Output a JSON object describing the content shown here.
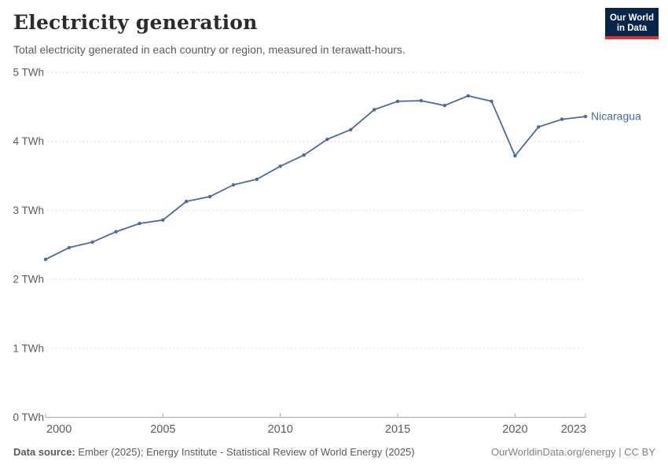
{
  "header": {
    "title": "Electricity generation",
    "subtitle": "Total electricity generated in each country or region, measured in terawatt-hours.",
    "logo": {
      "line1": "Our World",
      "line2": "in Data",
      "bg_color": "#08254a",
      "accent_color": "#d7352b"
    }
  },
  "chart_data": {
    "type": "line",
    "title": "Electricity generation",
    "unit": "TWh",
    "x": [
      2000,
      2001,
      2002,
      2003,
      2004,
      2005,
      2006,
      2007,
      2008,
      2009,
      2010,
      2011,
      2012,
      2013,
      2014,
      2015,
      2016,
      2017,
      2018,
      2019,
      2020,
      2021,
      2022,
      2023
    ],
    "series": [
      {
        "name": "Nicaragua",
        "color": "#4c6a9c",
        "values": [
          2.29,
          2.46,
          2.54,
          2.69,
          2.81,
          2.86,
          3.13,
          3.2,
          3.37,
          3.45,
          3.64,
          3.8,
          4.03,
          4.17,
          4.46,
          4.58,
          4.59,
          4.52,
          4.66,
          4.58,
          3.79,
          4.21,
          4.32,
          4.36
        ]
      }
    ],
    "ylim": [
      0,
      5
    ],
    "yticks": [
      0,
      1,
      2,
      3,
      4,
      5
    ],
    "ytick_suffix": " TWh",
    "xticks": [
      2000,
      2005,
      2010,
      2015,
      2020,
      2023
    ],
    "grid": "dashed-horizontal",
    "legend_position": "end-of-line",
    "colors": {
      "gridline": "#dedede",
      "axis_line": "#a6a6a6",
      "tick_label": "#5c5c5c"
    }
  },
  "footer": {
    "source_label": "Data source:",
    "source_text": " Ember (2025); Energy Institute - Statistical Review of World Energy (2025)",
    "right_text": "OurWorldinData.org/energy | CC BY"
  }
}
